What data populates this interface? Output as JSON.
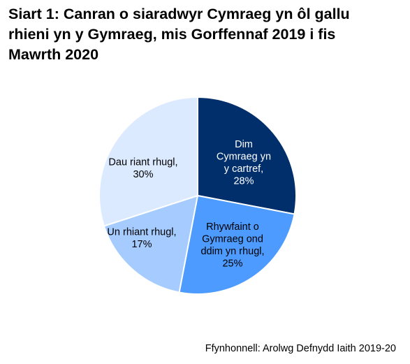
{
  "title_lines": [
    "Siart 1: Canran o siaradwyr Cymraeg yn ôl gallu",
    "rhieni yn y Gymraeg, mis Gorffennaf 2019 i fis",
    "Mawrth 2020"
  ],
  "source": "Ffynhonnell: Arolwg Defnydd Iaith 2019-20",
  "chart_data": {
    "type": "pie",
    "title": "Siart 1: Canran o siaradwyr Cymraeg yn ôl gallu rhieni yn y Gymraeg, mis Gorffennaf 2019 i fis Mawrth 2020",
    "slices": [
      {
        "label": "Dim Cymraeg yn y cartref",
        "value": 28,
        "color": "#002f6c",
        "text_color": "#ffffff",
        "label_lines": [
          "Dim",
          "Cymraeg yn",
          "y cartref,",
          "28%"
        ]
      },
      {
        "label": "Rhywfaint o Gymraeg ond ddim yn rhugl",
        "value": 25,
        "color": "#4d9bff",
        "text_color": "#000000",
        "label_lines": [
          "Rhywfaint o",
          "Gymraeg ond",
          "ddim yn rhugl,",
          "25%"
        ]
      },
      {
        "label": "Un rhiant rhugl",
        "value": 17,
        "color": "#a6ccff",
        "text_color": "#000000",
        "label_lines": [
          "Un rhiant rhugl,",
          "17%"
        ]
      },
      {
        "label": "Dau riant rhugl",
        "value": 30,
        "color": "#dbeaff",
        "text_color": "#000000",
        "label_lines": [
          "Dau riant rhugl,",
          "30%"
        ]
      }
    ]
  }
}
